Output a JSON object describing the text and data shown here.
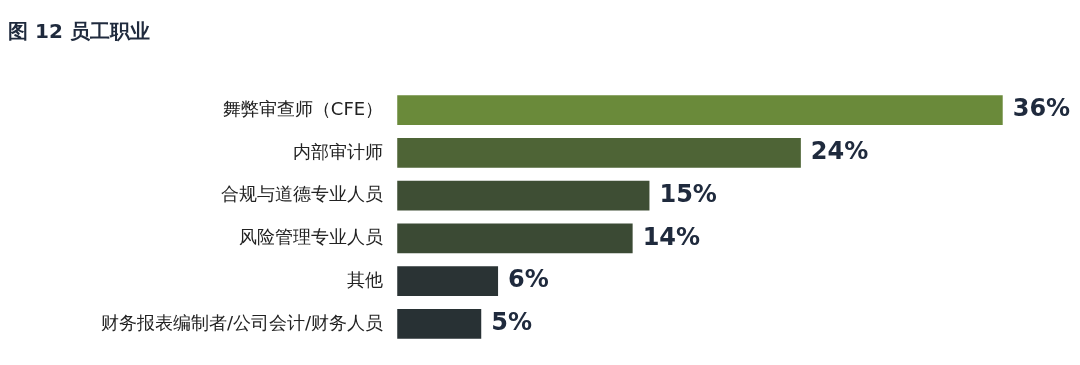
{
  "chart_data": {
    "type": "bar",
    "orientation": "horizontal",
    "title": "图 12 员工职业",
    "categories": [
      "舞弊审查师（CFE）",
      "内部审计师",
      "合规与道德专业人员",
      "风险管理专业人员",
      "其他",
      "财务报表编制者/公司会计/财务人员"
    ],
    "values": [
      36,
      24,
      15,
      14,
      6,
      5
    ],
    "value_labels": [
      "36%",
      "24%",
      "15%",
      "14%",
      "6%",
      "5%"
    ],
    "colors": [
      "#6a8a3a",
      "#4e6436",
      "#3e4e34",
      "#3b4a34",
      "#2a3334",
      "#283134"
    ],
    "tick_labels": "y",
    "legend": false
  }
}
